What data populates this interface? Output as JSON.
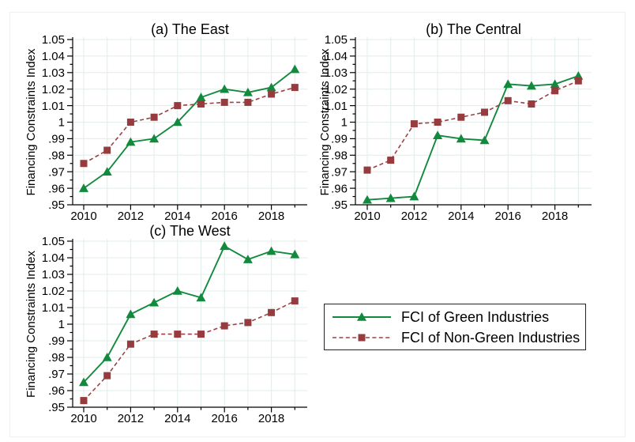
{
  "figure": {
    "legend": {
      "entries": [
        {
          "label": "FCI of Green Industries",
          "color": "#128a3e",
          "marker": "triangle",
          "line_style": "solid"
        },
        {
          "label": "FCI of Non-Green Industries",
          "color": "#9a4145",
          "marker_color": "#963b3e",
          "marker": "square",
          "line_style": "dashed"
        }
      ]
    },
    "colors": {
      "green_series": "#128a3e",
      "nongreen_series": "#9a4145",
      "gridline": "#e2ecea",
      "axis": "#000000"
    }
  },
  "chart_data": [
    {
      "type": "line",
      "title": "(a) The East",
      "ylabel": "Financing Constraints Index",
      "xlabel": "",
      "x": [
        2010,
        2011,
        2012,
        2013,
        2014,
        2015,
        2016,
        2017,
        2018,
        2019
      ],
      "xtick_labels": [
        "2010",
        "2012",
        "2014",
        "2016",
        "2018"
      ],
      "ytick_labels": [
        "1.05",
        "1.04",
        "1.03",
        "1.02",
        "1.01",
        "1",
        ".99",
        ".98",
        ".97",
        ".96",
        ".95"
      ],
      "ylim": [
        0.95,
        1.05
      ],
      "grid": true,
      "legend_position": "none",
      "series": [
        {
          "name": "FCI of Green Industries",
          "marker": "triangle",
          "line_style": "solid",
          "color": "#128a3e",
          "values": [
            0.96,
            0.97,
            0.988,
            0.99,
            1.0,
            1.015,
            1.02,
            1.018,
            1.021,
            1.032
          ]
        },
        {
          "name": "FCI of Non-Green Industries",
          "marker": "square",
          "line_style": "dashed",
          "color": "#9a4145",
          "marker_color": "#963b3e",
          "values": [
            0.975,
            0.983,
            1.0,
            1.003,
            1.01,
            1.011,
            1.012,
            1.012,
            1.017,
            1.021
          ]
        }
      ]
    },
    {
      "type": "line",
      "title": "(b) The Central",
      "ylabel": "Financing Constraints Index",
      "xlabel": "",
      "x": [
        2010,
        2011,
        2012,
        2013,
        2014,
        2015,
        2016,
        2017,
        2018,
        2019
      ],
      "xtick_labels": [
        "2010",
        "2012",
        "2014",
        "2016",
        "2018"
      ],
      "ytick_labels": [
        "1.05",
        "1.04",
        "1.03",
        "1.02",
        "1.01",
        "1",
        ".99",
        ".98",
        ".97",
        ".96",
        ".95"
      ],
      "ylim": [
        0.95,
        1.05
      ],
      "grid": true,
      "legend_position": "none",
      "series": [
        {
          "name": "FCI of Green Industries",
          "marker": "triangle",
          "line_style": "solid",
          "color": "#128a3e",
          "values": [
            0.953,
            0.954,
            0.955,
            0.992,
            0.99,
            0.989,
            1.023,
            1.022,
            1.023,
            1.028
          ]
        },
        {
          "name": "FCI of Non-Green Industries",
          "marker": "square",
          "line_style": "dashed",
          "color": "#9a4145",
          "marker_color": "#963b3e",
          "values": [
            0.971,
            0.977,
            0.999,
            1.0,
            1.003,
            1.006,
            1.013,
            1.011,
            1.019,
            1.025
          ]
        }
      ]
    },
    {
      "type": "line",
      "title": "(c) The West",
      "ylabel": "Financing Constraints Index",
      "xlabel": "",
      "x": [
        2010,
        2011,
        2012,
        2013,
        2014,
        2015,
        2016,
        2017,
        2018,
        2019
      ],
      "xtick_labels": [
        "2010",
        "2012",
        "2014",
        "2016",
        "2018"
      ],
      "ytick_labels": [
        "1.05",
        "1.04",
        "1.03",
        "1.02",
        "1.01",
        "1",
        ".99",
        ".98",
        ".97",
        ".96",
        ".95"
      ],
      "ylim": [
        0.95,
        1.05
      ],
      "grid": true,
      "legend_position": "none",
      "series": [
        {
          "name": "FCI of Green Industries",
          "marker": "triangle",
          "line_style": "solid",
          "color": "#128a3e",
          "values": [
            0.965,
            0.98,
            1.006,
            1.013,
            1.02,
            1.016,
            1.047,
            1.039,
            1.044,
            1.042
          ]
        },
        {
          "name": "FCI of Non-Green Industries",
          "marker": "square",
          "line_style": "dashed",
          "color": "#9a4145",
          "marker_color": "#963b3e",
          "values": [
            0.954,
            0.969,
            0.988,
            0.994,
            0.994,
            0.994,
            0.999,
            1.001,
            1.007,
            1.014
          ]
        }
      ]
    }
  ]
}
